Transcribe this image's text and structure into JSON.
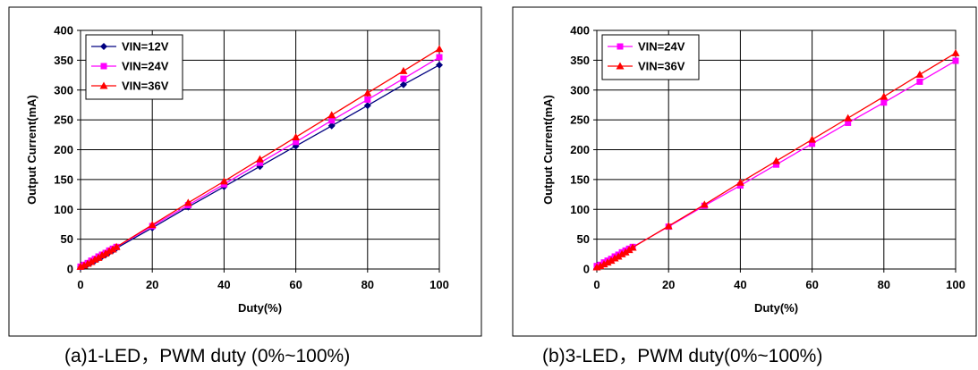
{
  "chart_data": [
    {
      "type": "line",
      "caption": "(a)1-LED，PWM duty (0%~100%)",
      "xlabel": "Duty(%)",
      "ylabel": "Output Current(mA)",
      "xlim": [
        0,
        100
      ],
      "ylim": [
        0,
        400
      ],
      "xticks": [
        0,
        20,
        40,
        60,
        80,
        100
      ],
      "yticks": [
        0,
        50,
        100,
        150,
        200,
        250,
        300,
        350,
        400
      ],
      "grid": true,
      "legend_position": "top-left",
      "series": [
        {
          "name": "VIN=12V",
          "color": "#000080",
          "marker": "diamond",
          "x": [
            0,
            1,
            2,
            3,
            4,
            5,
            6,
            7,
            8,
            9,
            10,
            20,
            30,
            40,
            50,
            60,
            70,
            80,
            90,
            100
          ],
          "y": [
            3,
            5,
            8,
            11,
            14,
            18,
            21,
            24,
            28,
            31,
            35,
            69,
            104,
            138,
            172,
            206,
            240,
            274,
            309,
            342
          ]
        },
        {
          "name": "VIN=24V",
          "color": "#ff00ff",
          "marker": "square",
          "x": [
            0,
            1,
            2,
            3,
            4,
            5,
            6,
            7,
            8,
            9,
            10,
            20,
            30,
            40,
            50,
            60,
            70,
            80,
            90,
            100
          ],
          "y": [
            4,
            7,
            10,
            14,
            17,
            21,
            24,
            27,
            31,
            34,
            37,
            72,
            107,
            142,
            178,
            213,
            249,
            284,
            319,
            355
          ]
        },
        {
          "name": "VIN=36V",
          "color": "#ff0000",
          "marker": "triangle",
          "x": [
            0,
            1,
            2,
            3,
            4,
            5,
            6,
            7,
            8,
            9,
            10,
            20,
            30,
            40,
            50,
            60,
            70,
            80,
            90,
            100
          ],
          "y": [
            4,
            6,
            9,
            12,
            16,
            19,
            23,
            26,
            30,
            33,
            37,
            74,
            111,
            147,
            184,
            221,
            258,
            295,
            332,
            369
          ]
        }
      ]
    },
    {
      "type": "line",
      "caption": "(b)3-LED，PWM duty(0%~100%)",
      "xlabel": "Duty(%)",
      "ylabel": "Output Current(mA)",
      "xlim": [
        0,
        100
      ],
      "ylim": [
        0,
        400
      ],
      "xticks": [
        0,
        20,
        40,
        60,
        80,
        100
      ],
      "yticks": [
        0,
        50,
        100,
        150,
        200,
        250,
        300,
        350,
        400
      ],
      "grid": true,
      "legend_position": "top-left",
      "series": [
        {
          "name": "VIN=24V",
          "color": "#ff00ff",
          "marker": "square",
          "x": [
            0,
            1,
            2,
            3,
            4,
            5,
            6,
            7,
            8,
            9,
            10,
            20,
            30,
            40,
            50,
            60,
            70,
            80,
            90,
            100
          ],
          "y": [
            5,
            7,
            11,
            14,
            17,
            21,
            24,
            28,
            31,
            34,
            37,
            71,
            106,
            140,
            175,
            210,
            245,
            279,
            314,
            349
          ]
        },
        {
          "name": "VIN=36V",
          "color": "#ff0000",
          "marker": "triangle",
          "x": [
            0,
            1,
            2,
            3,
            4,
            5,
            6,
            7,
            8,
            9,
            10,
            20,
            30,
            40,
            50,
            60,
            70,
            80,
            90,
            100
          ],
          "y": [
            3,
            5,
            8,
            11,
            14,
            18,
            21,
            25,
            28,
            32,
            36,
            72,
            108,
            145,
            181,
            217,
            253,
            289,
            326,
            362
          ]
        }
      ]
    }
  ]
}
